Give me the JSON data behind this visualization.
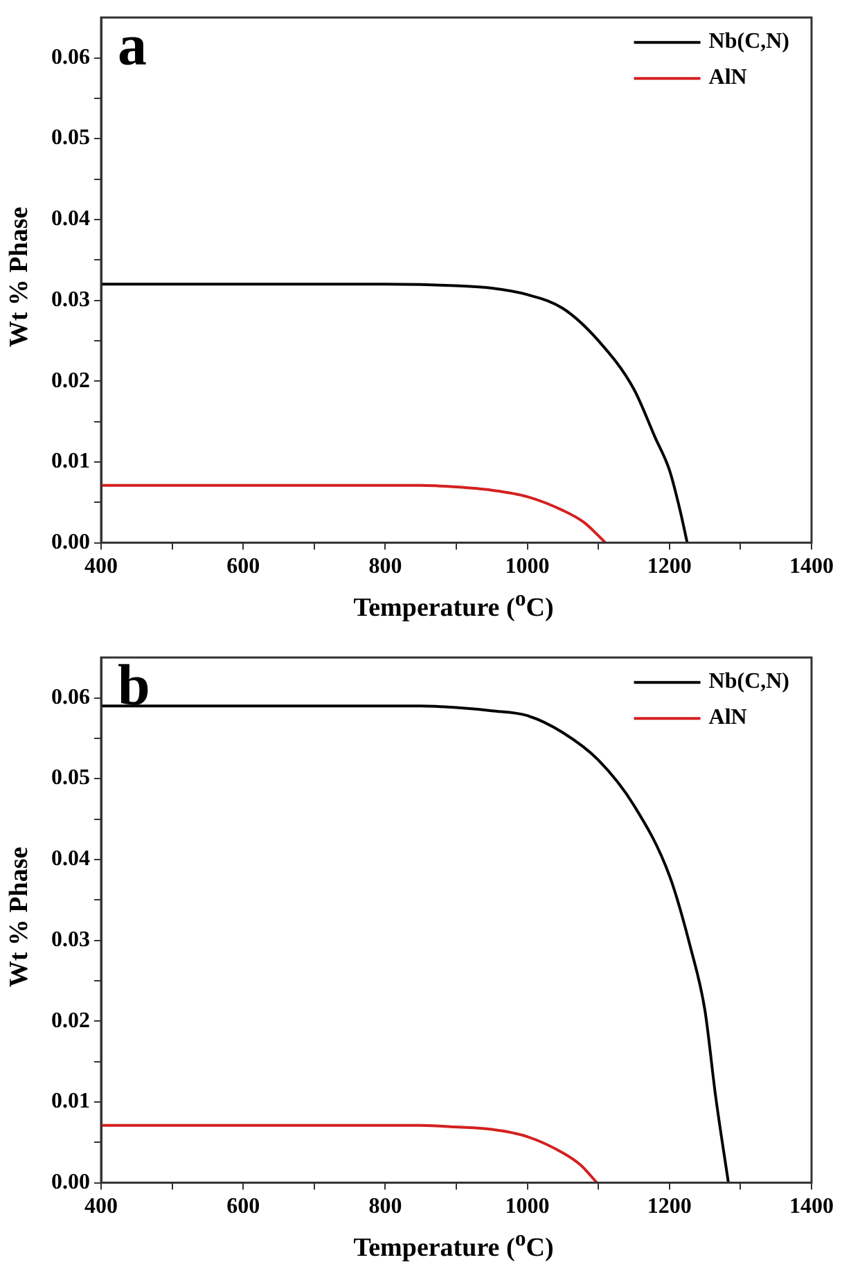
{
  "chart_data": [
    {
      "type": "line",
      "annotations": [
        "a"
      ],
      "xlabel": "Temperature ($^{o}$C)",
      "ylabel": "Wt % Phase",
      "legend": "top right",
      "grid": false,
      "line_style": "solid",
      "marker": "none",
      "xlim": [
        400,
        1400
      ],
      "xticks": [
        400,
        {
          "value": 500,
          "label": null
        },
        600,
        {
          "value": 700,
          "label": null
        },
        800,
        {
          "value": 900,
          "label": null
        },
        1000,
        {
          "value": 1100,
          "label": null
        },
        1200,
        {
          "value": 1300,
          "label": null
        },
        1400
      ],
      "ylim": [
        0,
        0.065
      ],
      "yticks": [
        "0.00",
        {
          "value": 0.005,
          "label": null
        },
        {
          "value": 0.01,
          "label": "0.01"
        },
        {
          "value": 0.015,
          "label": null
        },
        {
          "value": 0.02,
          "label": "0.02"
        },
        {
          "value": 0.025,
          "label": null
        },
        {
          "value": 0.03,
          "label": "0.03"
        },
        {
          "value": 0.035,
          "label": null
        },
        {
          "value": 0.04,
          "label": "0.04"
        },
        {
          "value": 0.045,
          "label": null
        },
        {
          "value": 0.05,
          "label": "0.05"
        },
        {
          "value": 0.055,
          "label": null
        },
        {
          "value": 0.06,
          "label": "0.06"
        }
      ],
      "series": [
        {
          "name": "Nb(C,N)",
          "color": "#000000",
          "x": [
            400,
            600,
            800,
            900,
            950,
            1000,
            1050,
            1100,
            1150,
            1180,
            1200,
            1215,
            1225
          ],
          "values": [
            0.032,
            0.032,
            0.032,
            0.0318,
            0.0315,
            0.0307,
            0.029,
            0.025,
            0.019,
            0.013,
            0.009,
            0.004,
            0
          ]
        },
        {
          "name": "AlN",
          "color": "#d42020",
          "x": [
            400,
            600,
            850,
            900,
            950,
            1000,
            1050,
            1080,
            1110
          ],
          "values": [
            0.0071,
            0.0071,
            0.0071,
            0.0069,
            0.0065,
            0.0057,
            0.004,
            0.0025,
            0
          ]
        }
      ]
    },
    {
      "type": "line",
      "annotations": [
        "b"
      ],
      "xlabel": "Temperature ($^{o}$C)",
      "ylabel": "Wt % Phase",
      "legend": "top right",
      "grid": false,
      "line_style": "solid",
      "marker": "none",
      "xlim": [
        400,
        1400
      ],
      "xticks": [
        400,
        {
          "value": 500,
          "label": null
        },
        600,
        {
          "value": 700,
          "label": null
        },
        800,
        {
          "value": 900,
          "label": null
        },
        1000,
        {
          "value": 1100,
          "label": null
        },
        1200,
        {
          "value": 1300,
          "label": null
        },
        1400
      ],
      "ylim": [
        0,
        0.065
      ],
      "yticks": [
        {
          "value": 0,
          "label": "0.00"
        },
        {
          "value": 0.005,
          "label": null
        },
        {
          "value": 0.01,
          "label": "0.01"
        },
        {
          "value": 0.015,
          "label": null
        },
        {
          "value": 0.02,
          "label": "0.02"
        },
        {
          "value": 0.025,
          "label": null
        },
        {
          "value": 0.03,
          "label": "0.03"
        },
        {
          "value": 0.035,
          "label": null
        },
        {
          "value": 0.04,
          "label": "0.04"
        },
        {
          "value": 0.045,
          "label": null
        },
        {
          "value": 0.05,
          "label": "0.05"
        },
        {
          "value": 0.055,
          "label": null
        },
        {
          "value": 0.06,
          "label": "0.06"
        }
      ],
      "series": [
        {
          "name": "Nb(C,N)",
          "color": "#000000",
          "x": [
            400,
            600,
            850,
            900,
            950,
            1000,
            1050,
            1100,
            1150,
            1200,
            1230,
            1250,
            1265,
            1283
          ],
          "values": [
            0.059,
            0.059,
            0.059,
            0.0588,
            0.0584,
            0.0578,
            0.0557,
            0.0523,
            0.0467,
            0.038,
            0.029,
            0.0213,
            0.0107,
            0
          ]
        },
        {
          "name": "AlN",
          "color": "#d42020",
          "x": [
            400,
            600,
            850,
            900,
            950,
            1000,
            1050,
            1075,
            1098
          ],
          "values": [
            0.0071,
            0.0071,
            0.0071,
            0.0069,
            0.0066,
            0.0057,
            0.0037,
            0.0022,
            0
          ]
        }
      ]
    }
  ]
}
